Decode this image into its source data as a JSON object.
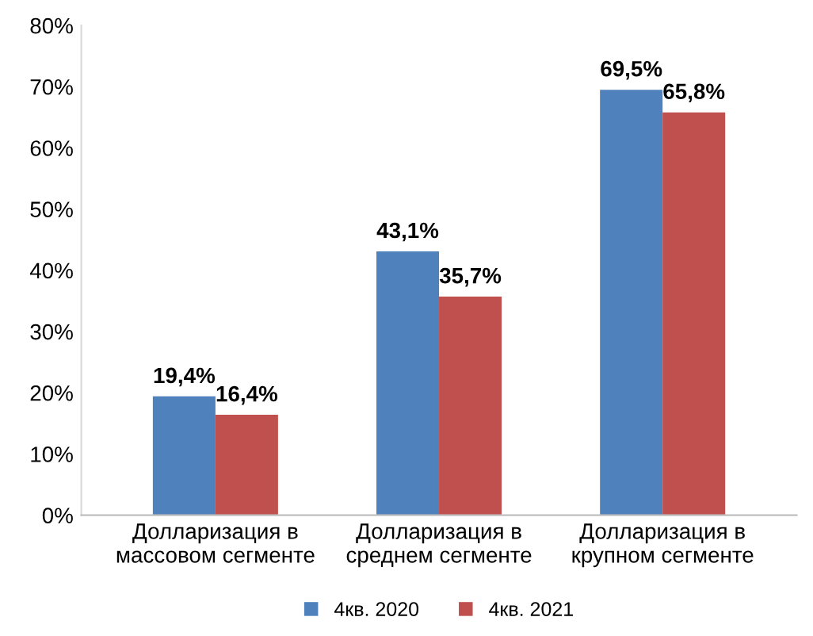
{
  "chart_data": {
    "type": "bar",
    "categories": [
      "Долларизация в\nмассовом сегменте",
      "Долларизация в\nсреднем сегменте",
      "Долларизация в\nкрупном сегменте"
    ],
    "series": [
      {
        "name": "4кв. 2020",
        "color": "#4f81bd",
        "values": [
          19.4,
          43.1,
          69.5
        ],
        "value_labels": [
          "19,4%",
          "43,1%",
          "69,5%"
        ]
      },
      {
        "name": "4кв. 2021",
        "color": "#c0504d",
        "values": [
          16.4,
          35.7,
          65.8
        ],
        "value_labels": [
          "16,4%",
          "35,7%",
          "65,8%"
        ]
      }
    ],
    "ylim": [
      0,
      80
    ],
    "yticks": [
      {
        "value": 0,
        "label": "0%"
      },
      {
        "value": 10,
        "label": "10%"
      },
      {
        "value": 20,
        "label": "20%"
      },
      {
        "value": 30,
        "label": "30%"
      },
      {
        "value": 40,
        "label": "40%"
      },
      {
        "value": 50,
        "label": "50%"
      },
      {
        "value": 60,
        "label": "60%"
      },
      {
        "value": 70,
        "label": "70%"
      },
      {
        "value": 80,
        "label": "80%"
      }
    ],
    "grid": false,
    "legend": "bottom"
  }
}
